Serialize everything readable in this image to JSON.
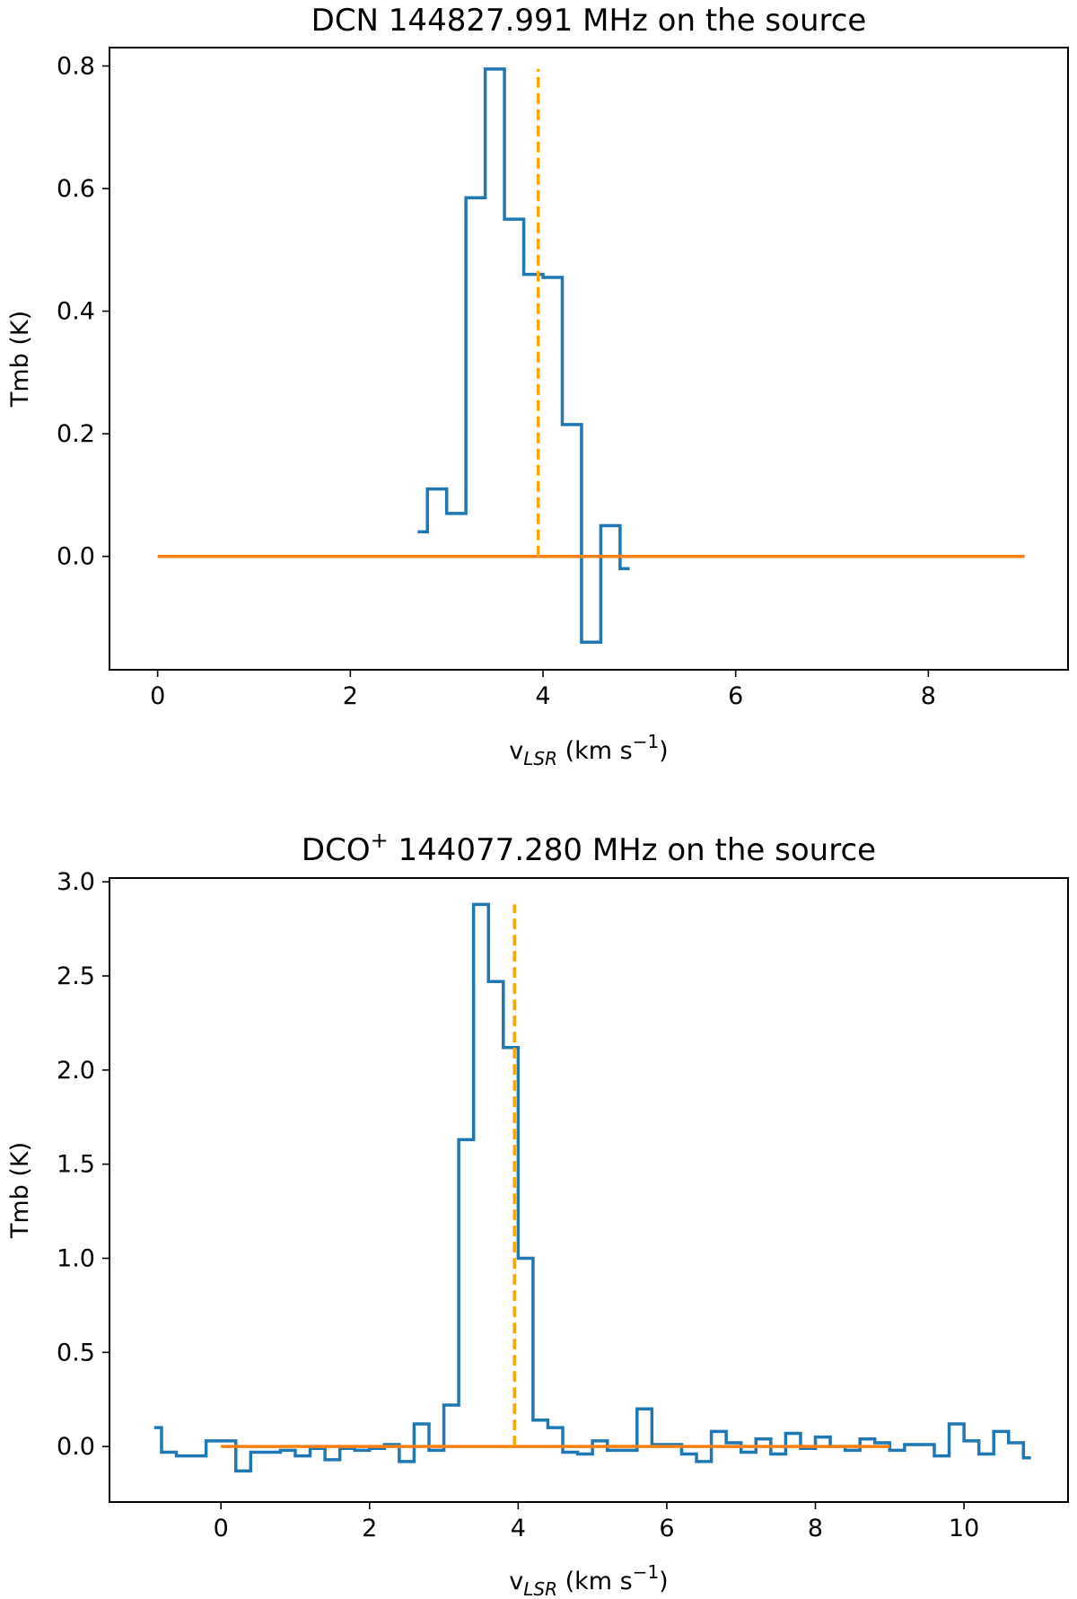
{
  "chart_data": [
    {
      "type": "line",
      "title": "DCN 144827.991 MHz on the source",
      "xlabel": {
        "main": "v",
        "sub": "LSR",
        "rest": " (km s",
        "sup": "−1",
        "close": ")"
      },
      "ylabel": "Tmb (K)",
      "xlim": [
        -0.5,
        9.45
      ],
      "ylim": [
        -0.185,
        0.83
      ],
      "xticks": [
        0,
        2,
        4,
        6,
        8
      ],
      "xtick_labels": [
        "0",
        "2",
        "4",
        "6",
        "8"
      ],
      "yticks": [
        0.0,
        0.2,
        0.4,
        0.6,
        0.8
      ],
      "ytick_labels": [
        "0.0",
        "0.2",
        "0.4",
        "0.6",
        "0.8"
      ],
      "grid": false,
      "series": [
        {
          "style": "step",
          "color": "#1f77b4",
          "x": [
            2.7,
            2.9,
            3.1,
            3.3,
            3.5,
            3.7,
            3.9,
            4.1,
            4.3,
            4.5,
            4.7,
            4.9
          ],
          "y": [
            0.04,
            0.11,
            0.07,
            0.585,
            0.795,
            0.55,
            0.46,
            0.455,
            0.215,
            -0.14,
            0.05,
            -0.02
          ]
        },
        {
          "style": "line",
          "color": "#ff7f0e",
          "x": [
            0,
            9
          ],
          "y": [
            0,
            0
          ]
        },
        {
          "style": "vline-dashed",
          "color": "#ffa500",
          "x": [
            3.95,
            3.95
          ],
          "y": [
            0,
            0.795
          ]
        }
      ]
    },
    {
      "type": "line",
      "title": "DCO",
      "title_sup": "+",
      "title_rest": "  144077.280 MHz on the source",
      "xlabel": {
        "main": "v",
        "sub": "LSR",
        "rest": " (km s",
        "sup": "−1",
        "close": ")"
      },
      "ylabel": "Tmb (K)",
      "xlim": [
        -1.5,
        11.4
      ],
      "ylim": [
        -0.295,
        3.02
      ],
      "xticks": [
        0,
        2,
        4,
        6,
        8,
        10
      ],
      "xtick_labels": [
        "0",
        "2",
        "4",
        "6",
        "8",
        "10"
      ],
      "yticks": [
        0.0,
        0.5,
        1.0,
        1.5,
        2.0,
        2.5,
        3.0
      ],
      "ytick_labels": [
        "0.0",
        "0.5",
        "1.0",
        "1.5",
        "2.0",
        "2.5",
        "3.0"
      ],
      "grid": false,
      "series": [
        {
          "style": "step",
          "color": "#1f77b4",
          "x": [
            -0.9,
            -0.7,
            -0.5,
            -0.3,
            -0.1,
            0.1,
            0.3,
            0.5,
            0.7,
            0.9,
            1.1,
            1.3,
            1.5,
            1.7,
            1.9,
            2.1,
            2.3,
            2.5,
            2.7,
            2.9,
            3.1,
            3.3,
            3.5,
            3.7,
            3.9,
            4.1,
            4.3,
            4.5,
            4.7,
            4.9,
            5.1,
            5.3,
            5.5,
            5.7,
            5.9,
            6.1,
            6.3,
            6.5,
            6.7,
            6.9,
            7.1,
            7.3,
            7.5,
            7.7,
            7.9,
            8.1,
            8.3,
            8.5,
            8.7,
            8.9,
            9.1,
            9.3,
            9.5,
            9.7,
            9.9,
            10.1,
            10.3,
            10.5,
            10.7,
            10.9
          ],
          "y": [
            0.1,
            -0.03,
            -0.05,
            -0.05,
            0.03,
            0.03,
            -0.13,
            -0.03,
            -0.03,
            -0.02,
            -0.05,
            -0.01,
            -0.07,
            -0.01,
            -0.02,
            -0.01,
            0.01,
            -0.08,
            0.12,
            -0.02,
            0.22,
            1.63,
            2.88,
            2.47,
            2.12,
            1.0,
            0.14,
            0.1,
            -0.03,
            -0.04,
            0.03,
            -0.02,
            -0.02,
            0.2,
            0.01,
            0.01,
            -0.04,
            -0.08,
            0.08,
            0.02,
            -0.03,
            0.04,
            -0.04,
            0.07,
            -0.01,
            0.05,
            0.0,
            -0.02,
            0.04,
            0.02,
            -0.02,
            0.01,
            0.01,
            -0.05,
            0.12,
            0.03,
            -0.04,
            0.08,
            0.02,
            -0.06
          ]
        },
        {
          "style": "line",
          "color": "#ff7f0e",
          "x": [
            0,
            9
          ],
          "y": [
            0,
            0
          ]
        },
        {
          "style": "vline-dashed",
          "color": "#ffa500",
          "x": [
            3.95,
            3.95
          ],
          "y": [
            0,
            2.88
          ]
        }
      ]
    }
  ]
}
